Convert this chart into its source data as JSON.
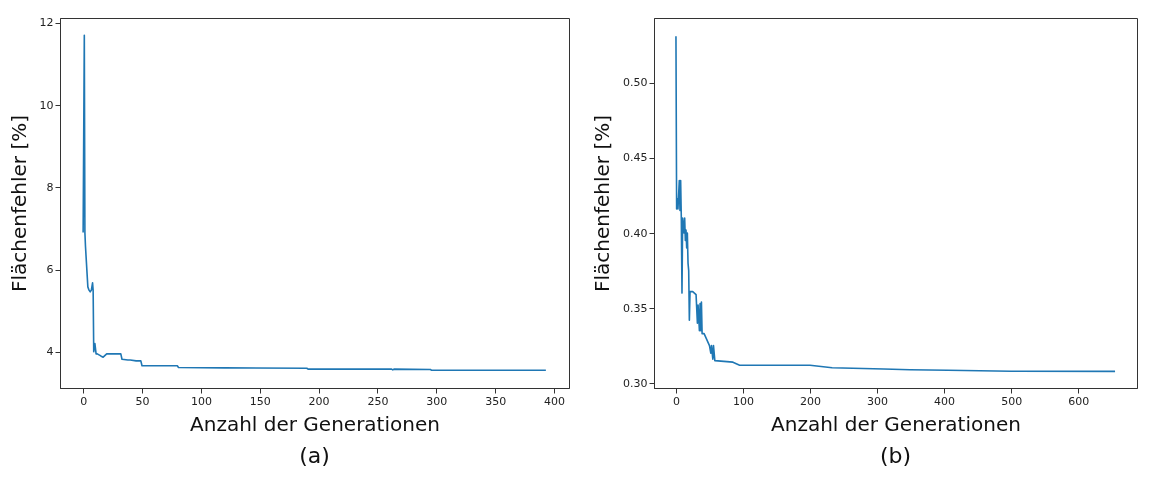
{
  "chart_data": [
    {
      "type": "line",
      "xlabel": "Anzahl der Generationen",
      "ylabel": "Flächenfehler [%]",
      "annotations": [
        "(a)"
      ],
      "grid": false,
      "xlim": [
        -19.65,
        412.65
      ],
      "ylim": [
        3.12,
        12.12
      ],
      "xticks": [
        0,
        50,
        100,
        150,
        200,
        250,
        300,
        350,
        400
      ],
      "yticks": [
        4,
        6,
        8,
        10,
        12
      ],
      "series": [
        {
          "color": "#1f77b4",
          "x": [
            0,
            1,
            1.5,
            2,
            4,
            5,
            6,
            7,
            8,
            8.5,
            9,
            10,
            11,
            12,
            15,
            17,
            20,
            25,
            32,
            33,
            38,
            40,
            45,
            48,
            49,
            50,
            60,
            80,
            81,
            120,
            190,
            191,
            262,
            263,
            264,
            295,
            296,
            393
          ],
          "values": [
            6.9,
            11.7,
            6.9,
            6.56,
            5.58,
            5.5,
            5.46,
            5.5,
            5.68,
            5.5,
            4.0,
            4.2,
            3.95,
            3.95,
            3.9,
            3.87,
            3.95,
            3.95,
            3.95,
            3.82,
            3.8,
            3.8,
            3.78,
            3.78,
            3.78,
            3.66,
            3.66,
            3.66,
            3.62,
            3.61,
            3.6,
            3.58,
            3.58,
            3.56,
            3.58,
            3.57,
            3.55,
            3.55
          ]
        }
      ]
    },
    {
      "type": "line",
      "xlabel": "Anzahl der Generationen",
      "ylabel": "Flächenfehler [%]",
      "annotations": [
        "(b)"
      ],
      "grid": false,
      "xlim": [
        -32.75,
        687.75
      ],
      "ylim": [
        0.2968,
        0.5432
      ],
      "xticks": [
        0,
        100,
        200,
        300,
        400,
        500,
        600
      ],
      "yticks": [
        {
          "value": 0.3,
          "label": "0.30"
        },
        {
          "value": 0.35,
          "label": "0.35"
        },
        {
          "value": 0.4,
          "label": "0.40"
        },
        {
          "value": 0.45,
          "label": "0.45"
        },
        {
          "value": 0.5,
          "label": "0.50"
        }
      ],
      "series": [
        {
          "color": "#1f77b4",
          "x": [
            0,
            1,
            2,
            3,
            5,
            6,
            7,
            8,
            9,
            10,
            12,
            13,
            14,
            15,
            16,
            17,
            18,
            19,
            20,
            21,
            25,
            30,
            32,
            33,
            35,
            36,
            37,
            38,
            39,
            42,
            45,
            50,
            52,
            53,
            55,
            56,
            58,
            85,
            95,
            200,
            233,
            310,
            349,
            406,
            500,
            655
          ],
          "values": [
            0.531,
            0.416,
            0.423,
            0.416,
            0.435,
            0.415,
            0.435,
            0.41,
            0.36,
            0.41,
            0.4,
            0.41,
            0.395,
            0.402,
            0.39,
            0.4,
            0.38,
            0.375,
            0.342,
            0.361,
            0.361,
            0.359,
            0.34,
            0.352,
            0.335,
            0.353,
            0.335,
            0.354,
            0.333,
            0.333,
            0.33,
            0.325,
            0.32,
            0.325,
            0.316,
            0.325,
            0.315,
            0.314,
            0.312,
            0.312,
            0.3103,
            0.3095,
            0.309,
            0.3086,
            0.308,
            0.3079
          ]
        }
      ]
    }
  ]
}
